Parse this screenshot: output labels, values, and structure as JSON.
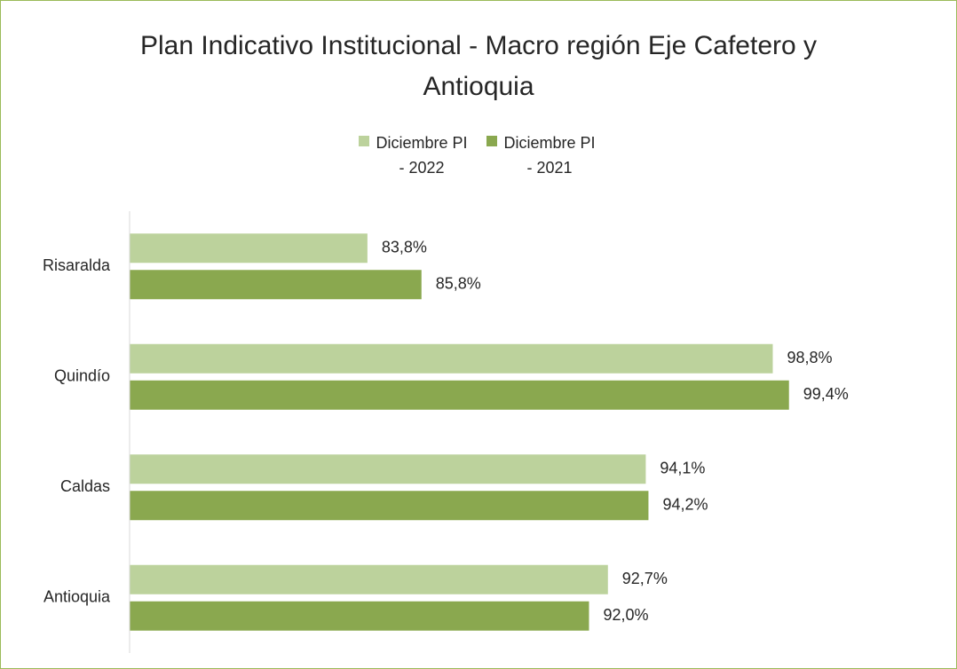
{
  "chart_data": {
    "type": "hbar",
    "title": "Plan Indicativo Institucional - Macro región Eje Cafetero y Antioquia",
    "categories": [
      "Risaralda",
      "Quindío",
      "Caldas",
      "Antioquia"
    ],
    "series": [
      {
        "name": "Diciembre PI - 2022",
        "color": "#bcd29c",
        "values": [
          83.8,
          98.8,
          94.1,
          92.7
        ],
        "value_labels": [
          "83,8%",
          "98,8%",
          "94,1%",
          "92,7%"
        ]
      },
      {
        "name": "Diciembre PI - 2021",
        "color": "#8aa84f",
        "values": [
          85.8,
          99.4,
          94.2,
          92.0
        ],
        "value_labels": [
          "85,8%",
          "99,4%",
          "94,2%",
          "92,0%"
        ]
      }
    ],
    "xlim": [
      75,
      100
    ],
    "legend": "top"
  }
}
